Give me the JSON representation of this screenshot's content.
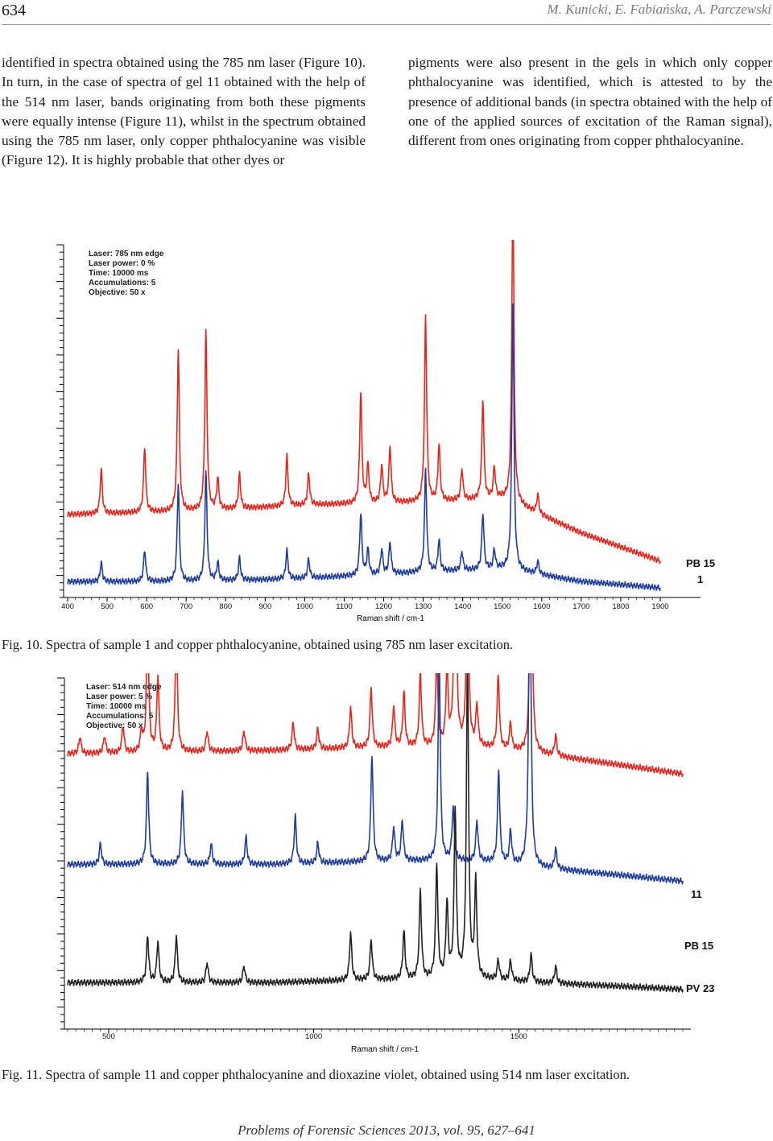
{
  "header": {
    "page_number": "634",
    "authors": "M. Kunicki, E. Fabiańska, A. Parczewski"
  },
  "body": {
    "left_column": "identified in spectra obtained using the 785 nm laser (Figure 10). In turn, in the case of spectra of gel 11 obtained with the help of the 514 nm laser, bands originating from both these pigments were equally intense (Figure 11), whilst in the spectrum obtained using the 785 nm laser, only copper phthalocyanine was visible (Figure 12). It is highly probable that other dyes or",
    "right_column": "pigments were also present in the gels in which only copper phthalocyanine was identified, which is attested to by the presence of additional bands (in spectra obtained with the help of one of the applied sources of excitation of the Raman signal), different from ones originating from copper phthalocyanine."
  },
  "figures": [
    {
      "caption": "Fig. 10. Spectra of sample 1 and copper phthalocyanine, obtained using 785 nm laser excitation.",
      "info": [
        "Laser: 785 nm edge",
        "Laser power: 0 %",
        "Time: 10000 ms",
        "Accumulations: 5",
        "Objective: 50 x"
      ]
    },
    {
      "caption": "Fig. 11. Spectra of sample 11 and copper phthalocyanine and dioxazine violet, obtained using 514 nm laser excitation.",
      "info": [
        "Laser: 514 nm edge",
        "Laser power: 5 %",
        "Time: 10000 ms",
        "Accumulations: 5",
        "Objective: 50 x"
      ]
    }
  ],
  "footer": "Problems of Forensic Sciences 2013, vol. 95, 627–641",
  "chart_data": [
    {
      "type": "line",
      "xlabel": "Raman shift / cm-1",
      "xlim": [
        400,
        1900
      ],
      "xticks": [
        400,
        500,
        600,
        700,
        800,
        900,
        1000,
        1100,
        1200,
        1300,
        1400,
        1500,
        1600,
        1700,
        1800,
        1900
      ],
      "colors": {
        "PB 15": "#e8241c",
        "1": "#1f3c9e"
      },
      "series": [
        {
          "name": "PB 15",
          "baseline": [
            [
              400,
              0.2
            ],
            [
              700,
              0.21
            ],
            [
              1000,
              0.23
            ],
            [
              1300,
              0.24
            ],
            [
              1500,
              0.25
            ],
            [
              1560,
              0.22
            ],
            [
              1700,
              0.14
            ],
            [
              1900,
              0.05
            ]
          ],
          "peaks": [
            [
              485,
              0.14
            ],
            [
              595,
              0.21
            ],
            [
              680,
              0.52
            ],
            [
              750,
              0.58
            ],
            [
              780,
              0.1
            ],
            [
              835,
              0.11
            ],
            [
              955,
              0.16
            ],
            [
              1010,
              0.1
            ],
            [
              1142,
              0.36
            ],
            [
              1160,
              0.12
            ],
            [
              1195,
              0.12
            ],
            [
              1216,
              0.18
            ],
            [
              1306,
              0.6
            ],
            [
              1340,
              0.18
            ],
            [
              1398,
              0.1
            ],
            [
              1451,
              0.32
            ],
            [
              1480,
              0.1
            ],
            [
              1527,
              1.0
            ],
            [
              1590,
              0.06
            ]
          ]
        },
        {
          "name": "1",
          "baseline": [
            [
              400,
              0.02
            ],
            [
              700,
              0.02
            ],
            [
              1000,
              0.03
            ],
            [
              1300,
              0.05
            ],
            [
              1500,
              0.06
            ],
            [
              1560,
              0.05
            ],
            [
              1700,
              0.02
            ],
            [
              1900,
              0.0
            ]
          ],
          "peaks": [
            [
              485,
              0.06
            ],
            [
              595,
              0.1
            ],
            [
              680,
              0.31
            ],
            [
              750,
              0.35
            ],
            [
              780,
              0.06
            ],
            [
              835,
              0.07
            ],
            [
              955,
              0.09
            ],
            [
              1010,
              0.06
            ],
            [
              1142,
              0.2
            ],
            [
              1160,
              0.08
            ],
            [
              1195,
              0.08
            ],
            [
              1216,
              0.1
            ],
            [
              1306,
              0.33
            ],
            [
              1340,
              0.1
            ],
            [
              1398,
              0.06
            ],
            [
              1451,
              0.18
            ],
            [
              1480,
              0.06
            ],
            [
              1527,
              0.85
            ],
            [
              1590,
              0.04
            ]
          ]
        }
      ]
    },
    {
      "type": "line",
      "xlabel": "Raman shift / cm-1",
      "xlim": [
        400,
        1900
      ],
      "xticks": [
        500,
        1000,
        1500
      ],
      "colors": {
        "11": "#e8241c",
        "PB 15": "#1f3c9e",
        "PV 23": "#222222"
      },
      "series": [
        {
          "name": "11",
          "baseline": [
            [
              400,
              0.78
            ],
            [
              900,
              0.79
            ],
            [
              1200,
              0.8
            ],
            [
              1400,
              0.8
            ],
            [
              1550,
              0.78
            ],
            [
              1900,
              0.72
            ]
          ],
          "peaks": [
            [
              430,
              0.05
            ],
            [
              490,
              0.05
            ],
            [
              535,
              0.08
            ],
            [
              580,
              0.06
            ],
            [
              595,
              0.4
            ],
            [
              620,
              0.22
            ],
            [
              665,
              0.35
            ],
            [
              740,
              0.06
            ],
            [
              830,
              0.06
            ],
            [
              950,
              0.08
            ],
            [
              1010,
              0.06
            ],
            [
              1090,
              0.12
            ],
            [
              1140,
              0.18
            ],
            [
              1195,
              0.12
            ],
            [
              1220,
              0.16
            ],
            [
              1260,
              0.22
            ],
            [
              1300,
              0.26
            ],
            [
              1325,
              0.22
            ],
            [
              1345,
              0.75
            ],
            [
              1375,
              0.6
            ],
            [
              1398,
              0.12
            ],
            [
              1450,
              0.22
            ],
            [
              1480,
              0.08
            ],
            [
              1530,
              0.8
            ],
            [
              1590,
              0.06
            ]
          ]
        },
        {
          "name": "PB 15",
          "baseline": [
            [
              400,
              0.45
            ],
            [
              900,
              0.45
            ],
            [
              1200,
              0.46
            ],
            [
              1400,
              0.46
            ],
            [
              1550,
              0.44
            ],
            [
              1900,
              0.4
            ]
          ],
          "peaks": [
            [
              480,
              0.06
            ],
            [
              595,
              0.28
            ],
            [
              680,
              0.22
            ],
            [
              750,
              0.06
            ],
            [
              835,
              0.08
            ],
            [
              955,
              0.14
            ],
            [
              1010,
              0.06
            ],
            [
              1142,
              0.32
            ],
            [
              1195,
              0.1
            ],
            [
              1216,
              0.12
            ],
            [
              1306,
              0.6
            ],
            [
              1340,
              0.16
            ],
            [
              1398,
              0.12
            ],
            [
              1451,
              0.28
            ],
            [
              1480,
              0.1
            ],
            [
              1527,
              1.0
            ],
            [
              1590,
              0.06
            ]
          ]
        },
        {
          "name": "PV 23",
          "baseline": [
            [
              400,
              0.1
            ],
            [
              900,
              0.1
            ],
            [
              1200,
              0.11
            ],
            [
              1400,
              0.11
            ],
            [
              1550,
              0.1
            ],
            [
              1900,
              0.08
            ]
          ],
          "peaks": [
            [
              595,
              0.14
            ],
            [
              620,
              0.12
            ],
            [
              665,
              0.14
            ],
            [
              740,
              0.06
            ],
            [
              830,
              0.05
            ],
            [
              1090,
              0.14
            ],
            [
              1140,
              0.12
            ],
            [
              1220,
              0.14
            ],
            [
              1260,
              0.26
            ],
            [
              1300,
              0.34
            ],
            [
              1325,
              0.22
            ],
            [
              1345,
              0.5
            ],
            [
              1375,
              0.95
            ],
            [
              1395,
              0.28
            ],
            [
              1450,
              0.06
            ],
            [
              1480,
              0.06
            ],
            [
              1530,
              0.08
            ],
            [
              1590,
              0.05
            ]
          ]
        }
      ]
    }
  ]
}
